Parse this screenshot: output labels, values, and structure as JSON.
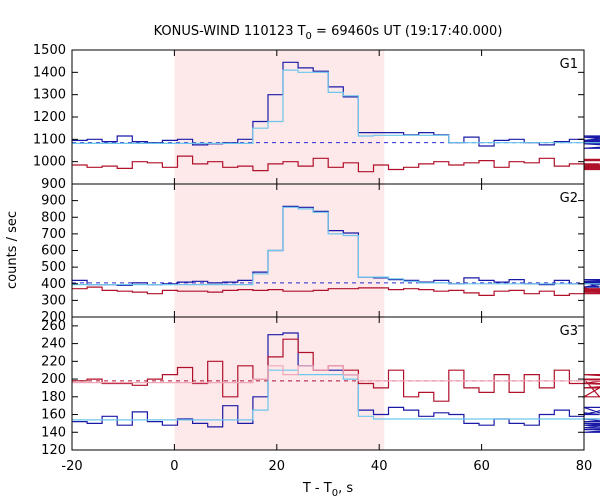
{
  "title_prefix": "KONUS-WIND 110123 T",
  "title_subscript": "0",
  "title_suffix": " = 69460s UT (19:17:40.000)",
  "ylabel": "counts / sec",
  "xlabel_prefix": "T - T",
  "xlabel_subscript": "0",
  "xlabel_suffix": ", s",
  "colors": {
    "shade": "#fde8ea",
    "blue": "#1a1aa6",
    "red": "#b0102a",
    "cyan": "#6cc6ec",
    "pink": "#f0a8b8",
    "dash_blue": "#2a2ad0",
    "dash_red": "#b01030"
  },
  "chart_data": {
    "type": "line",
    "x_range": [
      -20,
      80
    ],
    "x_ticks": [
      -20,
      0,
      20,
      40,
      60,
      80
    ],
    "shaded_interval": [
      0,
      41
    ],
    "step": 2.944,
    "x_start": -20,
    "panels": [
      {
        "label": "G1",
        "ylim": [
          900,
          1500
        ],
        "y_ticks": [
          900,
          1000,
          1100,
          1200,
          1300,
          1400,
          1500
        ],
        "background_level": 1085,
        "series": [
          {
            "color_key": "blue",
            "values": [
              1095,
              1100,
              1090,
              1115,
              1090,
              1085,
              1095,
              1100,
              1075,
              1080,
              1085,
              1100,
              1180,
              1300,
              1445,
              1420,
              1405,
              1335,
              1290,
              1130,
              1130,
              1130,
              1120,
              1130,
              1120,
              1085,
              1110,
              1070,
              1095,
              1100,
              1085,
              1075,
              1090,
              1100,
              1090,
              1080,
              1095,
              1115,
              1110,
              1080,
              1060,
              1090,
              1095,
              1085
            ]
          },
          {
            "color_key": "cyan",
            "values": [
              1082,
              1082,
              1082,
              1082,
              1082,
              1082,
              1082,
              1082,
              1082,
              1082,
              1082,
              1082,
              1150,
              1180,
              1410,
              1400,
              1400,
              1310,
              1295,
              1115,
              1118,
              1118,
              1118,
              1118,
              1118,
              1085,
              1085,
              1085,
              1085,
              1085,
              1085,
              1085,
              1085,
              1085,
              1085,
              1085,
              1085,
              1085,
              1085,
              1085,
              1085,
              1085,
              1085,
              1085
            ]
          },
          {
            "color_key": "red",
            "values": [
              985,
              975,
              980,
              970,
              1000,
              995,
              975,
              1025,
              990,
              1000,
              975,
              980,
              960,
              990,
              1000,
              980,
              1015,
              975,
              995,
              955,
              985,
              965,
              975,
              990,
              1000,
              985,
              995,
              1005,
              975,
              1000,
              995,
              1015,
              980,
              990,
              985,
              990,
              980,
              975,
              1005,
              1010,
              985,
              965,
              970,
              975
            ]
          }
        ]
      },
      {
        "label": "G2",
        "ylim": [
          200,
          1000
        ],
        "y_ticks": [
          200,
          300,
          400,
          500,
          600,
          700,
          800,
          900
        ],
        "background_level": 405,
        "series": [
          {
            "color_key": "blue",
            "values": [
              420,
              395,
              395,
              390,
              405,
              395,
              400,
              410,
              415,
              405,
              410,
              420,
              470,
              600,
              865,
              860,
              835,
              720,
              705,
              440,
              435,
              425,
              420,
              410,
              420,
              400,
              435,
              420,
              410,
              425,
              400,
              395,
              420,
              400,
              410,
              380,
              410,
              400,
              425,
              405,
              400,
              410,
              415,
              405
            ]
          },
          {
            "color_key": "cyan",
            "values": [
              395,
              395,
              395,
              395,
              395,
              395,
              395,
              395,
              395,
              395,
              395,
              395,
              460,
              600,
              860,
              850,
              830,
              700,
              690,
              440,
              440,
              430,
              415,
              405,
              405,
              400,
              400,
              400,
              400,
              400,
              400,
              400,
              400,
              400,
              400,
              400,
              400,
              400,
              400,
              400,
              400,
              400,
              400,
              400
            ]
          },
          {
            "color_key": "red",
            "values": [
              370,
              380,
              360,
              355,
              350,
              340,
              360,
              355,
              355,
              350,
              360,
              365,
              360,
              365,
              355,
              355,
              360,
              370,
              370,
              375,
              375,
              365,
              370,
              365,
              355,
              360,
              345,
              330,
              355,
              360,
              340,
              355,
              330,
              340,
              375,
              355,
              370,
              360,
              365,
              350,
              340,
              355,
              360,
              350
            ]
          }
        ]
      },
      {
        "label": "G3",
        "ylim": [
          120,
          270
        ],
        "y_ticks": [
          120,
          140,
          160,
          180,
          200,
          220,
          240,
          260
        ],
        "background_level": 198,
        "series": [
          {
            "color_key": "blue",
            "values": [
              152,
              150,
              158,
              148,
              163,
              152,
              148,
              155,
              150,
              146,
              170,
              150,
              180,
              250,
              252,
              215,
              210,
              210,
              205,
              165,
              160,
              168,
              165,
              158,
              162,
              160,
              150,
              148,
              155,
              150,
              148,
              160,
              165,
              158,
              162,
              160,
              168,
              150,
              145,
              155,
              143,
              148,
              140,
              152
            ]
          },
          {
            "color_key": "cyan",
            "values": [
              154,
              154,
              154,
              154,
              154,
              154,
              154,
              154,
              154,
              154,
              154,
              154,
              165,
              210,
              210,
              205,
              205,
              205,
              200,
              158,
              155,
              155,
              155,
              155,
              155,
              155,
              155,
              155,
              155,
              155,
              155,
              155,
              155,
              155,
              155,
              155,
              155,
              155,
              155,
              155,
              155,
              155,
              155,
              155
            ]
          },
          {
            "color_key": "red",
            "values": [
              198,
              200,
              195,
              195,
              193,
              200,
              205,
              213,
              195,
              220,
              180,
              215,
              200,
              225,
              245,
              230,
              210,
              215,
              210,
              195,
              190,
              210,
              180,
              185,
              175,
              210,
              190,
              185,
              205,
              185,
              205,
              190,
              210,
              195,
              200,
              180,
              200,
              195,
              205,
              200,
              195,
              190,
              200,
              195
            ]
          },
          {
            "color_key": "pink",
            "values": [
              196,
              196,
              196,
              196,
              196,
              196,
              196,
              196,
              196,
              196,
              196,
              196,
              200,
              215,
              205,
              215,
              210,
              215,
              205,
              198,
              198,
              198,
              198,
              198,
              198,
              198,
              198,
              198,
              198,
              198,
              198,
              198,
              198,
              198,
              198,
              198,
              198,
              198,
              198,
              198,
              198,
              198,
              198,
              198
            ]
          }
        ]
      }
    ]
  }
}
